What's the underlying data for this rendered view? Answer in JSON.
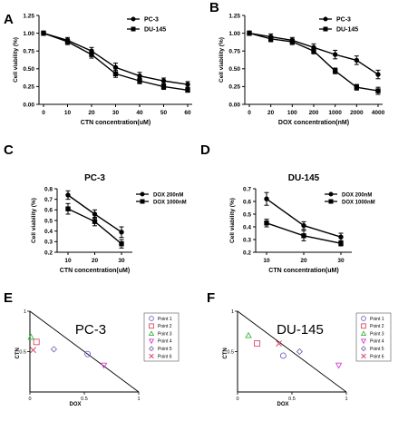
{
  "chart_data": [
    {
      "panel": "A",
      "type": "line",
      "xlabel": "CTN concentration(uM)",
      "ylabel": "Cell viability (%)",
      "x": [
        0,
        10,
        20,
        30,
        40,
        50,
        60
      ],
      "x_tick_labels": [
        "0",
        "10",
        "20",
        "30",
        "40",
        "50",
        "60"
      ],
      "y_tick_labels": [
        "0.00",
        "0.25",
        "0.50",
        "0.75",
        "1.00",
        "1.25"
      ],
      "ylim": [
        0,
        1.25
      ],
      "legend_position": "top-right",
      "series": [
        {
          "name": "PC-3",
          "marker": "circle",
          "values": [
            1.0,
            0.9,
            0.75,
            0.52,
            0.4,
            0.33,
            0.28
          ],
          "error": [
            0.03,
            0.04,
            0.05,
            0.06,
            0.05,
            0.04,
            0.04
          ]
        },
        {
          "name": "DU-145",
          "marker": "square",
          "values": [
            1.0,
            0.88,
            0.7,
            0.43,
            0.33,
            0.25,
            0.2
          ],
          "error": [
            0.03,
            0.04,
            0.05,
            0.05,
            0.04,
            0.04,
            0.03
          ]
        }
      ]
    },
    {
      "panel": "B",
      "type": "line",
      "xlabel": "DOX concentration(nM)",
      "ylabel": "Cell viability (%)",
      "x_tick_labels": [
        "0",
        "20",
        "100",
        "200",
        "1000",
        "2000",
        "4000"
      ],
      "y_tick_labels": [
        "0.00",
        "0.25",
        "0.50",
        "0.75",
        "1.00",
        "1.25"
      ],
      "ylim": [
        0,
        1.25
      ],
      "legend_position": "top-right",
      "series": [
        {
          "name": "PC-3",
          "marker": "circle",
          "values": [
            1.0,
            0.95,
            0.9,
            0.8,
            0.7,
            0.62,
            0.42
          ],
          "error": [
            0.03,
            0.04,
            0.04,
            0.05,
            0.06,
            0.06,
            0.06
          ]
        },
        {
          "name": "DU-145",
          "marker": "square",
          "values": [
            1.0,
            0.92,
            0.88,
            0.75,
            0.47,
            0.24,
            0.19
          ],
          "error": [
            0.03,
            0.04,
            0.04,
            0.04,
            0.04,
            0.04,
            0.05
          ]
        }
      ]
    },
    {
      "panel": "C",
      "type": "line",
      "title": "PC-3",
      "xlabel": "CTN concentration(uM)",
      "ylabel": "Cell viability (%)",
      "x_tick_labels": [
        "10",
        "20",
        "30"
      ],
      "y_tick_labels": [
        "0.2",
        "0.3",
        "0.4",
        "0.5",
        "0.6",
        "0.7",
        "0.8"
      ],
      "ylim": [
        0.2,
        0.8
      ],
      "legend_position": "right",
      "series": [
        {
          "name": "DOX 200nM",
          "marker": "circle",
          "values": [
            0.74,
            0.56,
            0.39
          ],
          "error": [
            0.04,
            0.04,
            0.05
          ]
        },
        {
          "name": "DOX 1000nM",
          "marker": "square",
          "values": [
            0.61,
            0.49,
            0.28
          ],
          "error": [
            0.05,
            0.04,
            0.04
          ]
        }
      ]
    },
    {
      "panel": "D",
      "type": "line",
      "title": "DU-145",
      "xlabel": "CTN concentration(uM)",
      "ylabel": "Cell viability (%)",
      "x_tick_labels": [
        "10",
        "20",
        "30"
      ],
      "y_tick_labels": [
        "0.2",
        "0.3",
        "0.4",
        "0.5",
        "0.6",
        "0.7"
      ],
      "ylim": [
        0.2,
        0.7
      ],
      "legend_position": "right",
      "series": [
        {
          "name": "DOX 200nM",
          "marker": "circle",
          "values": [
            0.62,
            0.41,
            0.32
          ],
          "error": [
            0.05,
            0.03,
            0.03
          ]
        },
        {
          "name": "DOX 1000nM",
          "marker": "square",
          "values": [
            0.43,
            0.33,
            0.27
          ],
          "error": [
            0.03,
            0.04,
            0.02
          ]
        }
      ]
    },
    {
      "panel": "E",
      "type": "scatter",
      "title": "PC-3",
      "xlabel": "DOX",
      "ylabel": "CTN",
      "x_tick_labels": [
        "0",
        "0.5",
        "1"
      ],
      "y_tick_labels": [
        "0.5",
        "1"
      ],
      "xlim": [
        0,
        1
      ],
      "ylim": [
        0,
        1
      ],
      "additivity_line": true,
      "legend_position": "right",
      "series": [
        {
          "name": "Point 1",
          "marker": "circle",
          "color": "#7a5fc7",
          "x": 0.53,
          "y": 0.47
        },
        {
          "name": "Point 2",
          "marker": "square",
          "color": "#d94a6a",
          "x": 0.06,
          "y": 0.62
        },
        {
          "name": "Point 3",
          "marker": "triangle-up",
          "color": "#3fb23f",
          "x": 0.01,
          "y": 0.68
        },
        {
          "name": "Point 4",
          "marker": "triangle-down",
          "color": "#d63fd6",
          "x": 0.68,
          "y": 0.33
        },
        {
          "name": "Point 5",
          "marker": "diamond",
          "color": "#7d6fb0",
          "x": 0.22,
          "y": 0.53
        },
        {
          "name": "Point 6",
          "marker": "x",
          "color": "#d94a6a",
          "x": 0.03,
          "y": 0.52
        }
      ]
    },
    {
      "panel": "F",
      "type": "scatter",
      "title": "DU-145",
      "xlabel": "DOX",
      "ylabel": "CTN",
      "x_tick_labels": [
        "0",
        "0.5",
        "1"
      ],
      "y_tick_labels": [
        "0.5",
        "1"
      ],
      "xlim": [
        0,
        1
      ],
      "ylim": [
        0,
        1
      ],
      "additivity_line": true,
      "legend_position": "right",
      "series": [
        {
          "name": "Point 1",
          "marker": "circle",
          "color": "#7a5fc7",
          "x": 0.42,
          "y": 0.45
        },
        {
          "name": "Point 2",
          "marker": "square",
          "color": "#d94a6a",
          "x": 0.18,
          "y": 0.6
        },
        {
          "name": "Point 3",
          "marker": "triangle-up",
          "color": "#3fb23f",
          "x": 0.1,
          "y": 0.7
        },
        {
          "name": "Point 4",
          "marker": "triangle-down",
          "color": "#d63fd6",
          "x": 0.93,
          "y": 0.33
        },
        {
          "name": "Point 5",
          "marker": "diamond",
          "color": "#7d6fb0",
          "x": 0.57,
          "y": 0.5
        },
        {
          "name": "Point 6",
          "marker": "x",
          "color": "#d94a6a",
          "x": 0.38,
          "y": 0.6
        }
      ]
    }
  ],
  "panel_letters": [
    "A",
    "B",
    "C",
    "D",
    "E",
    "F"
  ]
}
